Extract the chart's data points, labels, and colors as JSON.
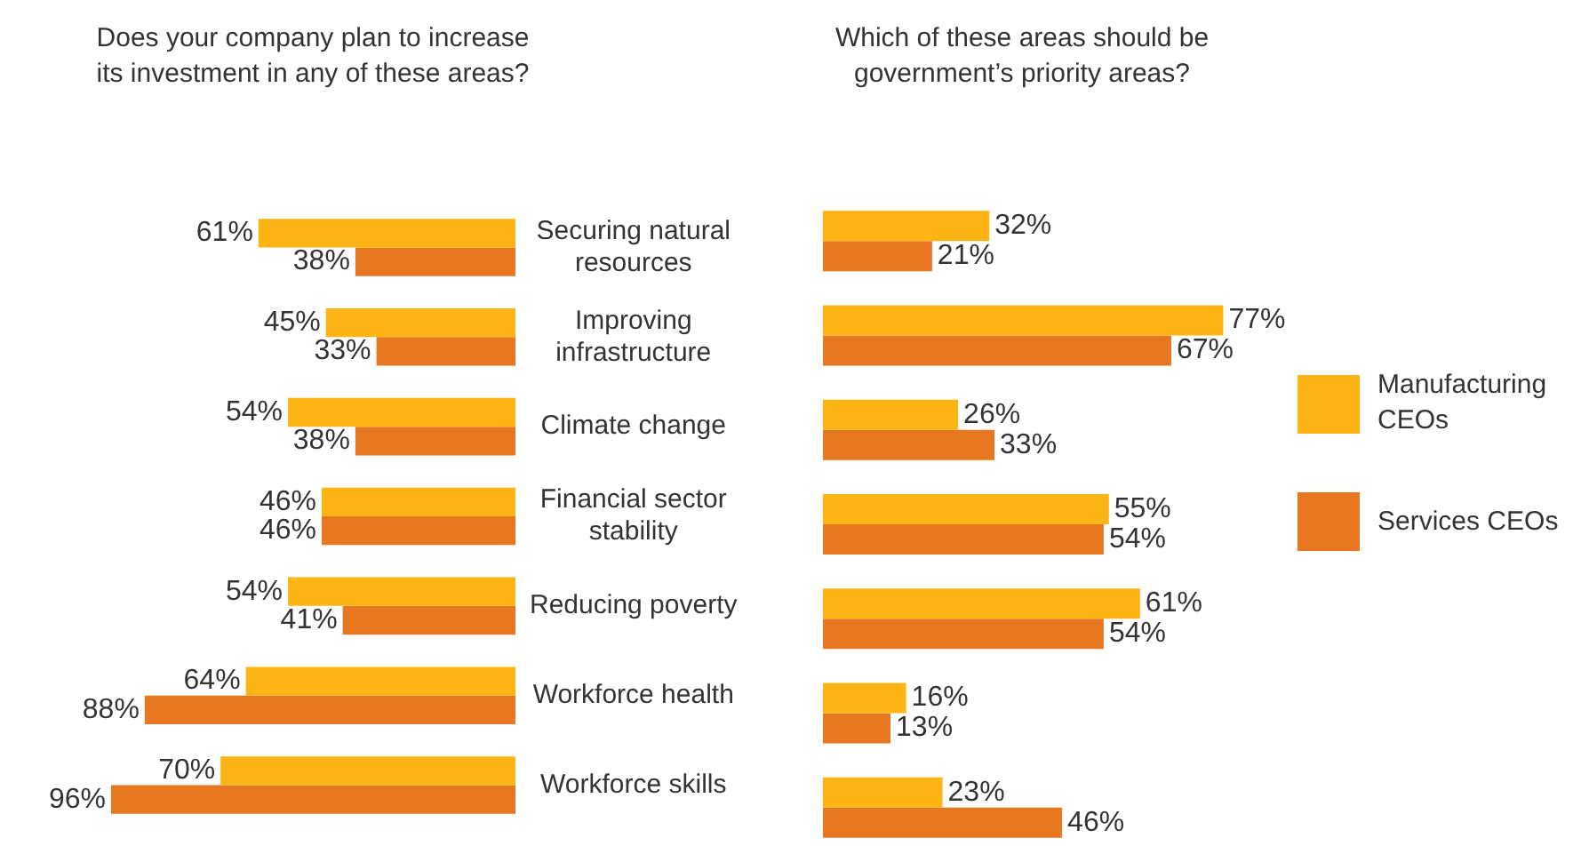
{
  "chart_data": [
    {
      "type": "bar",
      "orientation": "horizontal",
      "title": "Does your company plan to increase its investment in any of these areas?",
      "categories": [
        "Securing natural resources",
        "Improving infrastructure",
        "Climate change",
        "Financial sector stability",
        "Reducing poverty",
        "Workforce health",
        "Workforce skills"
      ],
      "tick_labels": "y",
      "series": [
        {
          "color": "#fdb515",
          "values": [
            61,
            45,
            54,
            46,
            54,
            64,
            70
          ],
          "value_labels": [
            "61%",
            "45%",
            "54%",
            "46%",
            "54%",
            "64%",
            "70%"
          ]
        },
        {
          "color": "#e87722",
          "values": [
            38,
            33,
            38,
            46,
            41,
            88,
            96
          ],
          "value_labels": [
            "38%",
            "33%",
            "38%",
            "46%",
            "41%",
            "88%",
            "96%"
          ]
        }
      ]
    },
    {
      "type": "bar",
      "orientation": "horizontal",
      "title": "Which of these areas should be government’s priority areas?",
      "categories": [
        null,
        null,
        null,
        null,
        null,
        null,
        null
      ],
      "tick_labels": false,
      "legend": "right",
      "series": [
        {
          "name": "Manufacturing CEOs",
          "color": "#fdb515",
          "values": [
            32,
            77,
            26,
            55,
            61,
            16,
            23
          ],
          "value_labels": [
            "32%",
            "77%",
            "26%",
            "55%",
            "61%",
            "16%",
            "23%"
          ]
        },
        {
          "name": "Services CEOs",
          "color": "#e87722",
          "values": [
            21,
            67,
            33,
            54,
            54,
            13,
            46
          ],
          "value_labels": [
            "21%",
            "67%",
            "33%",
            "54%",
            "54%",
            "13%",
            "46%"
          ]
        }
      ]
    }
  ]
}
